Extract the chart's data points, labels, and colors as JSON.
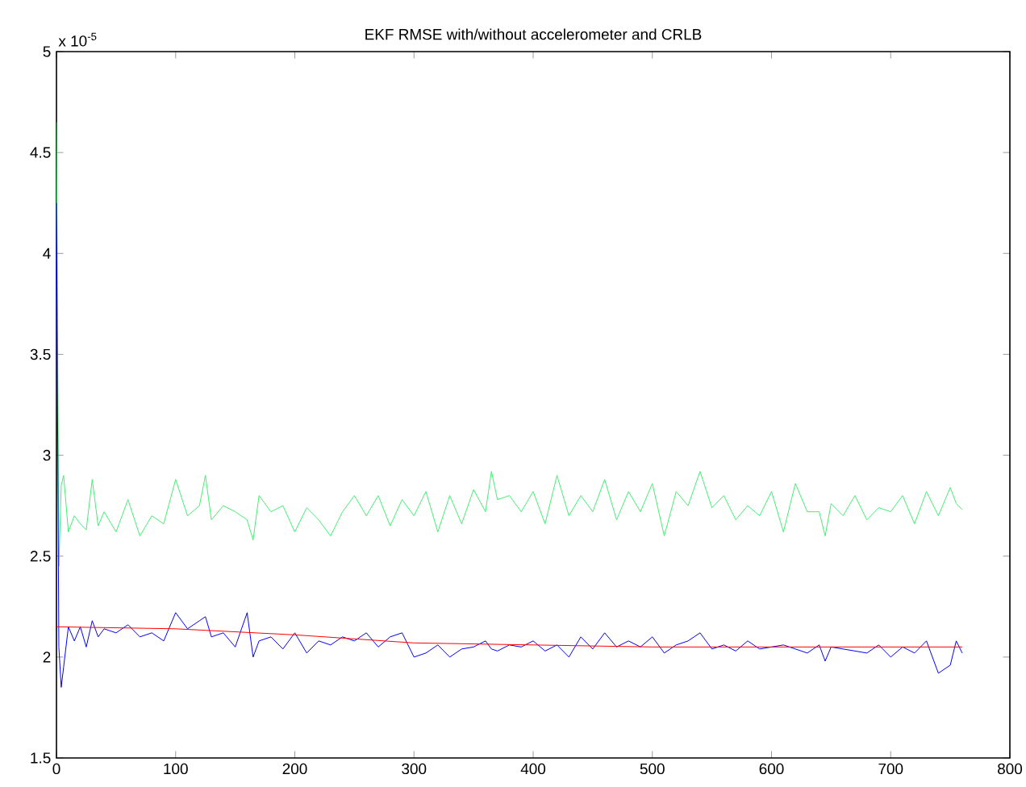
{
  "chart_data": {
    "type": "line",
    "title": "EKF RMSE with/without accelerometer and CRLB",
    "annotations": [
      "x 10$^{-5}$"
    ],
    "x": [
      0,
      2,
      4,
      6,
      10,
      15,
      20,
      25,
      30,
      35,
      40,
      50,
      60,
      70,
      80,
      90,
      100,
      110,
      120,
      125,
      130,
      140,
      150,
      160,
      165,
      170,
      180,
      190,
      200,
      210,
      220,
      230,
      240,
      250,
      260,
      270,
      280,
      290,
      300,
      310,
      320,
      330,
      340,
      350,
      360,
      365,
      370,
      380,
      390,
      400,
      410,
      420,
      430,
      440,
      450,
      460,
      470,
      480,
      490,
      500,
      510,
      520,
      530,
      540,
      550,
      560,
      570,
      580,
      590,
      600,
      610,
      620,
      630,
      640,
      645,
      650,
      660,
      670,
      680,
      690,
      700,
      710,
      720,
      730,
      740,
      750,
      755,
      760
    ],
    "series": [
      {
        "color": "#40f070",
        "values": [
          4.65,
          2.45,
          2.85,
          2.9,
          2.62,
          2.7,
          2.66,
          2.63,
          2.88,
          2.65,
          2.72,
          2.62,
          2.78,
          2.6,
          2.7,
          2.66,
          2.88,
          2.7,
          2.75,
          2.9,
          2.68,
          2.75,
          2.72,
          2.68,
          2.58,
          2.8,
          2.72,
          2.75,
          2.62,
          2.74,
          2.68,
          2.6,
          2.72,
          2.8,
          2.7,
          2.8,
          2.65,
          2.78,
          2.7,
          2.82,
          2.62,
          2.8,
          2.66,
          2.83,
          2.72,
          2.92,
          2.78,
          2.8,
          2.72,
          2.82,
          2.66,
          2.9,
          2.7,
          2.8,
          2.72,
          2.88,
          2.68,
          2.82,
          2.72,
          2.86,
          2.6,
          2.82,
          2.75,
          2.92,
          2.74,
          2.8,
          2.68,
          2.75,
          2.7,
          2.82,
          2.62,
          2.86,
          2.72,
          2.72,
          2.6,
          2.76,
          2.7,
          2.8,
          2.68,
          2.74,
          2.72,
          2.8,
          2.66,
          2.82,
          2.7,
          2.84,
          2.76,
          2.73
        ]
      },
      {
        "color": "#0000ff",
        "values": [
          4.25,
          2.05,
          1.85,
          1.95,
          2.15,
          2.08,
          2.15,
          2.05,
          2.18,
          2.1,
          2.14,
          2.12,
          2.16,
          2.1,
          2.12,
          2.08,
          2.22,
          2.14,
          2.18,
          2.2,
          2.1,
          2.12,
          2.05,
          2.22,
          2.0,
          2.08,
          2.1,
          2.04,
          2.12,
          2.02,
          2.08,
          2.06,
          2.1,
          2.08,
          2.12,
          2.05,
          2.1,
          2.12,
          2.0,
          2.02,
          2.06,
          2.0,
          2.04,
          2.05,
          2.08,
          2.04,
          2.03,
          2.06,
          2.05,
          2.08,
          2.03,
          2.06,
          2.0,
          2.1,
          2.04,
          2.12,
          2.05,
          2.08,
          2.05,
          2.1,
          2.02,
          2.06,
          2.08,
          2.12,
          2.04,
          2.06,
          2.03,
          2.08,
          2.04,
          2.05,
          2.06,
          2.04,
          2.02,
          2.06,
          1.98,
          2.05,
          2.04,
          2.03,
          2.02,
          2.06,
          2.0,
          2.05,
          2.02,
          2.08,
          1.92,
          1.96,
          2.08,
          2.02
        ]
      },
      {
        "color": "#ff0000",
        "x": [
          0,
          100,
          200,
          300,
          400,
          500,
          600,
          700,
          760
        ],
        "values": [
          2.15,
          2.14,
          2.11,
          2.07,
          2.06,
          2.05,
          2.05,
          2.05,
          2.05
        ]
      }
    ],
    "xlim": [
      0,
      800
    ],
    "ylim": [
      1.5,
      5
    ],
    "xticks": [
      0,
      100,
      200,
      300,
      400,
      500,
      600,
      700,
      800
    ],
    "yticks": [
      1.5,
      2,
      2.5,
      3,
      3.5,
      4,
      4.5,
      5
    ],
    "marker": "none",
    "line_style": "solid"
  }
}
